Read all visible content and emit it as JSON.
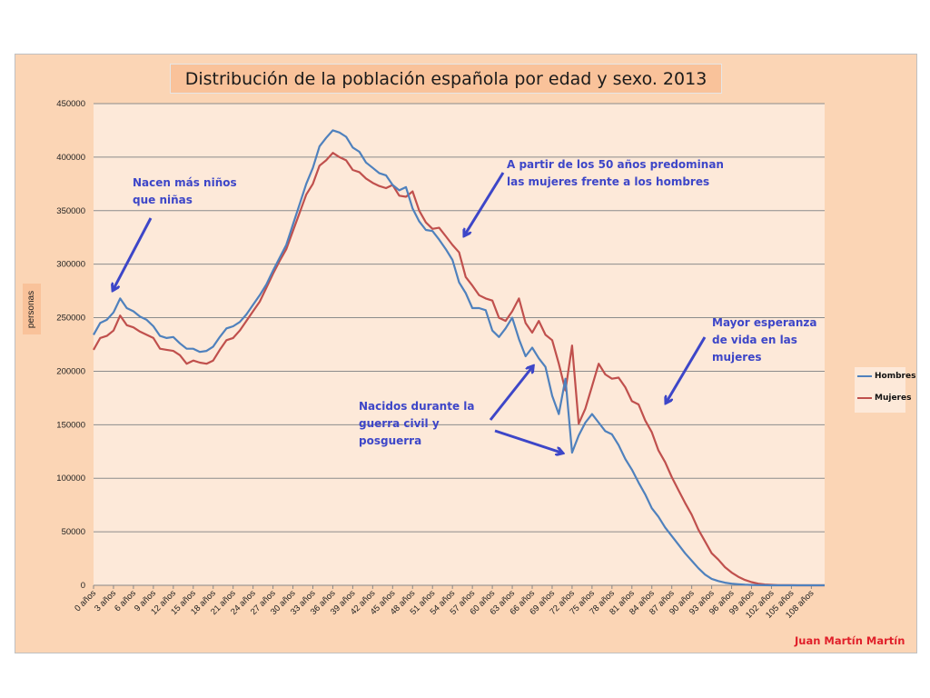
{
  "chart_data": {
    "type": "line",
    "title": "Distribución de la población española por edad y sexo. 2013",
    "ylabel": "personas",
    "xlabel": "",
    "ylim": [
      0,
      450000
    ],
    "yticks": [
      0,
      50000,
      100000,
      150000,
      200000,
      250000,
      300000,
      350000,
      400000,
      450000
    ],
    "x_tick_labels": [
      "0 años",
      "3 años",
      "6 años",
      "9 años",
      "12 años",
      "15 años",
      "18 años",
      "21 años",
      "24 años",
      "27 años",
      "30 años",
      "33 años",
      "36 años",
      "39 años",
      "42 años",
      "45 años",
      "48 años",
      "51 años",
      "54 años",
      "57 años",
      "60 años",
      "63 años",
      "66 años",
      "69 años",
      "72 años",
      "75 años",
      "78 años",
      "81 años",
      "84 años",
      "87 años",
      "90 años",
      "93 años",
      "96 años",
      "99 años",
      "102 años",
      "105 años",
      "108 años"
    ],
    "x": [
      0,
      1,
      2,
      3,
      4,
      5,
      6,
      7,
      8,
      9,
      10,
      11,
      12,
      13,
      14,
      15,
      16,
      17,
      18,
      19,
      20,
      21,
      22,
      23,
      24,
      25,
      26,
      27,
      28,
      29,
      30,
      31,
      32,
      33,
      34,
      35,
      36,
      37,
      38,
      39,
      40,
      41,
      42,
      43,
      44,
      45,
      46,
      47,
      48,
      49,
      50,
      51,
      52,
      53,
      54,
      55,
      56,
      57,
      58,
      59,
      60,
      61,
      62,
      63,
      64,
      65,
      66,
      67,
      68,
      69,
      70,
      71,
      72,
      73,
      74,
      75,
      76,
      77,
      78,
      79,
      80,
      81,
      82,
      83,
      84,
      85,
      86,
      87,
      88,
      89,
      90,
      91,
      92,
      93,
      94,
      95,
      96,
      97,
      98,
      99,
      100,
      101,
      102,
      103,
      104,
      105,
      106,
      107,
      108,
      109,
      110
    ],
    "series": [
      {
        "name": "Hombres",
        "color": "#4f81bd",
        "values": [
          234000,
          245000,
          248000,
          255000,
          268000,
          259000,
          256000,
          251000,
          248000,
          242000,
          233000,
          231000,
          232000,
          226000,
          221000,
          221000,
          218000,
          219000,
          223000,
          232000,
          240000,
          242000,
          246000,
          253000,
          262000,
          271000,
          281000,
          294000,
          306000,
          318000,
          337000,
          356000,
          375000,
          390000,
          410000,
          418000,
          425000,
          423000,
          419000,
          409000,
          405000,
          395000,
          390000,
          385000,
          383000,
          374000,
          369000,
          372000,
          352000,
          340000,
          332000,
          331000,
          323000,
          314000,
          304000,
          283000,
          273000,
          259000,
          259000,
          257000,
          238000,
          232000,
          240000,
          250000,
          230000,
          214000,
          222000,
          212000,
          204000,
          177000,
          160000,
          193000,
          124000,
          140000,
          152000,
          160000,
          152000,
          144000,
          141000,
          131000,
          118000,
          108000,
          96000,
          85000,
          72000,
          64000,
          54000,
          46000,
          38000,
          30000,
          23000,
          16000,
          10000,
          6000,
          4000,
          2500,
          1500,
          1000,
          600,
          300,
          150,
          80,
          40,
          20,
          10,
          5,
          3,
          2,
          1,
          0,
          0
        ]
      },
      {
        "name": "Mujeres",
        "color": "#c0504d",
        "values": [
          220000,
          231000,
          233000,
          238000,
          252000,
          243000,
          241000,
          237000,
          234000,
          231000,
          221000,
          220000,
          219000,
          215000,
          207000,
          210000,
          208000,
          207000,
          210000,
          220000,
          229000,
          231000,
          238000,
          247000,
          256000,
          265000,
          278000,
          291000,
          303000,
          314000,
          331000,
          348000,
          365000,
          375000,
          392000,
          397000,
          404000,
          400000,
          397000,
          388000,
          386000,
          380000,
          376000,
          373000,
          371000,
          374000,
          364000,
          363000,
          368000,
          350000,
          339000,
          333000,
          334000,
          326000,
          318000,
          311000,
          288000,
          280000,
          271000,
          268000,
          266000,
          250000,
          247000,
          256000,
          268000,
          245000,
          236000,
          247000,
          234000,
          229000,
          207000,
          182000,
          224000,
          151000,
          165000,
          186000,
          207000,
          197000,
          193000,
          194000,
          185000,
          172000,
          169000,
          154000,
          143000,
          126000,
          115000,
          101000,
          89000,
          77000,
          66000,
          52000,
          41000,
          30000,
          24000,
          17000,
          12000,
          8000,
          5000,
          3000,
          1500,
          800,
          400,
          200,
          100,
          50,
          20,
          10,
          5,
          0,
          0
        ]
      }
    ],
    "legend_position": "right",
    "grid": true
  },
  "annotations": [
    {
      "key": "ninos",
      "lines": [
        "Nacen más niños",
        "que niñas"
      ]
    },
    {
      "key": "cincuenta",
      "lines": [
        "A partir de los 50 años predominan",
        "las mujeres frente a los hombres"
      ]
    },
    {
      "key": "esperanza",
      "lines": [
        "Mayor esperanza",
        "de vida en las",
        "mujeres"
      ]
    },
    {
      "key": "guerra",
      "lines": [
        "Nacidos durante la",
        "guerra civil y",
        "posguerra"
      ]
    }
  ],
  "author": "Juan Martín Martín",
  "colors": {
    "background": "#fbd5b5",
    "plot_area": "#fde9d9",
    "annotation": "#3d46c8",
    "author": "#e0202a"
  }
}
